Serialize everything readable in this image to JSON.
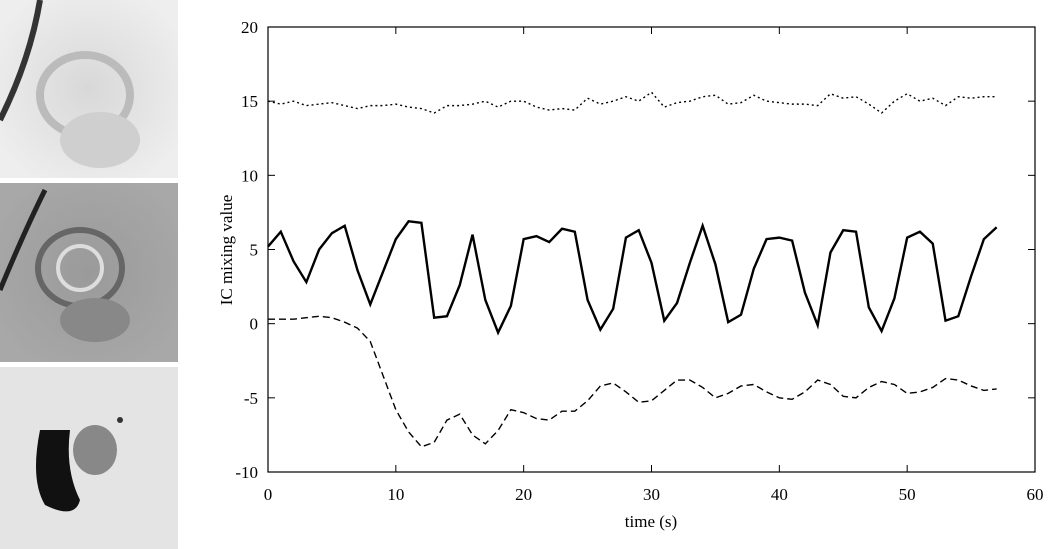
{
  "chart_data": {
    "type": "line",
    "x_label": "time (s)",
    "y_label": "IC mixing value",
    "x": [
      0,
      1,
      2,
      3,
      4,
      5,
      6,
      7,
      8,
      9,
      10,
      11,
      12,
      13,
      14,
      15,
      16,
      17,
      18,
      19,
      20,
      21,
      22,
      23,
      24,
      25,
      26,
      27,
      28,
      29,
      30,
      31,
      32,
      33,
      34,
      35,
      36,
      37,
      38,
      39,
      40,
      41,
      42,
      43,
      44,
      45,
      46,
      47,
      48,
      49,
      50,
      51,
      52,
      53,
      54,
      55,
      56,
      57
    ],
    "series": [
      {
        "color": "#000000",
        "line_style": "dotted",
        "values": [
          15.0,
          14.8,
          15.0,
          14.7,
          14.8,
          14.9,
          14.7,
          14.5,
          14.7,
          14.7,
          14.8,
          14.6,
          14.5,
          14.2,
          14.7,
          14.7,
          14.8,
          15.0,
          14.6,
          15.0,
          15.0,
          14.6,
          14.4,
          14.5,
          14.4,
          15.2,
          14.8,
          15.0,
          15.3,
          15.0,
          15.6,
          14.6,
          14.9,
          15.0,
          15.3,
          15.4,
          14.8,
          14.9,
          15.4,
          15.0,
          14.9,
          14.8,
          14.8,
          14.7,
          15.5,
          15.2,
          15.3,
          14.8,
          14.2,
          15.0,
          15.5,
          15.0,
          15.2,
          14.7,
          15.3,
          15.2,
          15.3,
          15.3
        ]
      },
      {
        "color": "#000000",
        "line_style": "solid",
        "values": [
          5.2,
          6.2,
          4.2,
          2.8,
          5.0,
          6.1,
          6.6,
          3.6,
          1.3,
          3.5,
          5.7,
          6.9,
          6.8,
          0.4,
          0.5,
          2.6,
          6.0,
          1.6,
          -0.6,
          1.2,
          5.7,
          5.9,
          5.5,
          6.4,
          6.2,
          1.6,
          -0.4,
          1.0,
          5.8,
          6.3,
          4.1,
          0.2,
          1.4,
          4.1,
          6.6,
          4.0,
          0.1,
          0.6,
          3.7,
          5.7,
          5.8,
          5.6,
          2.1,
          -0.1,
          4.8,
          6.3,
          6.2,
          1.1,
          -0.5,
          1.7,
          5.8,
          6.2,
          5.4,
          0.2,
          0.5,
          3.2,
          5.7,
          6.5
        ]
      },
      {
        "color": "#000000",
        "line_style": "dashed",
        "values": [
          0.3,
          0.3,
          0.3,
          0.4,
          0.5,
          0.4,
          0.1,
          -0.3,
          -1.2,
          -3.5,
          -5.8,
          -7.3,
          -8.3,
          -8.0,
          -6.5,
          -6.1,
          -7.5,
          -8.1,
          -7.2,
          -5.8,
          -6.0,
          -6.4,
          -6.5,
          -5.9,
          -5.9,
          -5.2,
          -4.2,
          -4.0,
          -4.6,
          -5.3,
          -5.2,
          -4.5,
          -3.8,
          -3.8,
          -4.3,
          -5.0,
          -4.7,
          -4.2,
          -4.1,
          -4.6,
          -5.0,
          -5.1,
          -4.6,
          -3.8,
          -4.1,
          -4.9,
          -5.0,
          -4.3,
          -3.9,
          -4.1,
          -4.7,
          -4.6,
          -4.3,
          -3.7,
          -3.8,
          -4.2,
          -4.5,
          -4.4
        ]
      }
    ],
    "xlim": [
      0,
      60
    ],
    "xticks": [
      0,
      10,
      20,
      30,
      40,
      50,
      60
    ],
    "ylim": [
      -10,
      20
    ],
    "yticks": [
      -10,
      -5,
      0,
      5,
      10,
      15,
      20
    ],
    "grid": false
  }
}
